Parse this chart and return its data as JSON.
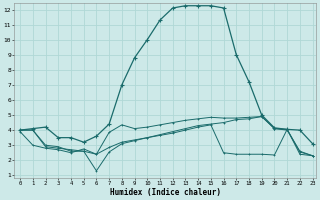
{
  "xlabel": "Humidex (Indice chaleur)",
  "xticks": [
    0,
    1,
    2,
    3,
    4,
    5,
    6,
    7,
    8,
    9,
    10,
    11,
    12,
    13,
    14,
    15,
    16,
    17,
    18,
    19,
    20,
    21,
    22,
    23
  ],
  "yticks": [
    1,
    2,
    3,
    4,
    5,
    6,
    7,
    8,
    9,
    10,
    11,
    12
  ],
  "bg_color": "#cde9e8",
  "grid_color": "#b0d8d6",
  "line_color": "#1a6b6b",
  "curve1_x": [
    0,
    1,
    2,
    3,
    4,
    5,
    6,
    7,
    8,
    9,
    10,
    11,
    12,
    13,
    14,
    15,
    16,
    17,
    18,
    19,
    20,
    21,
    22,
    23
  ],
  "curve1_y": [
    4.0,
    4.1,
    4.2,
    3.5,
    3.5,
    3.2,
    3.6,
    4.4,
    7.0,
    8.8,
    10.0,
    11.3,
    12.1,
    12.25,
    12.25,
    12.25,
    12.1,
    9.0,
    7.2,
    5.0,
    4.15,
    4.05,
    4.0,
    3.1
  ],
  "curve2_x": [
    0,
    1,
    2,
    3,
    4,
    5,
    6,
    7,
    8,
    9,
    10,
    11,
    12,
    13,
    14,
    15,
    16,
    17,
    18,
    19,
    20,
    21,
    22,
    23
  ],
  "curve2_y": [
    4.0,
    4.0,
    2.9,
    2.8,
    2.7,
    2.6,
    2.4,
    3.85,
    4.35,
    4.1,
    4.2,
    4.35,
    4.5,
    4.65,
    4.75,
    4.85,
    4.8,
    4.8,
    4.85,
    4.9,
    4.1,
    4.05,
    2.55,
    2.3
  ],
  "curve3_x": [
    0,
    1,
    2,
    3,
    4,
    5,
    6,
    7,
    8,
    9,
    10,
    11,
    12,
    13,
    14,
    15,
    16,
    17,
    18,
    19,
    20,
    21,
    22,
    23
  ],
  "curve3_y": [
    3.9,
    3.0,
    2.8,
    2.7,
    2.5,
    2.75,
    2.4,
    2.85,
    3.2,
    3.35,
    3.5,
    3.65,
    3.8,
    4.0,
    4.2,
    4.35,
    2.5,
    2.4,
    2.4,
    2.4,
    2.35,
    4.05,
    2.4,
    2.3
  ],
  "curve4_x": [
    0,
    1,
    2,
    3,
    4,
    5,
    6,
    7,
    8,
    9,
    10,
    11,
    12,
    13,
    14,
    15,
    16,
    17,
    18,
    19,
    20,
    21,
    22,
    23
  ],
  "curve4_y": [
    4.0,
    4.0,
    3.0,
    2.9,
    2.6,
    2.6,
    1.3,
    2.55,
    3.1,
    3.3,
    3.5,
    3.7,
    3.9,
    4.1,
    4.3,
    4.4,
    4.5,
    4.7,
    4.75,
    4.9,
    4.1,
    4.0,
    2.6,
    2.3
  ]
}
